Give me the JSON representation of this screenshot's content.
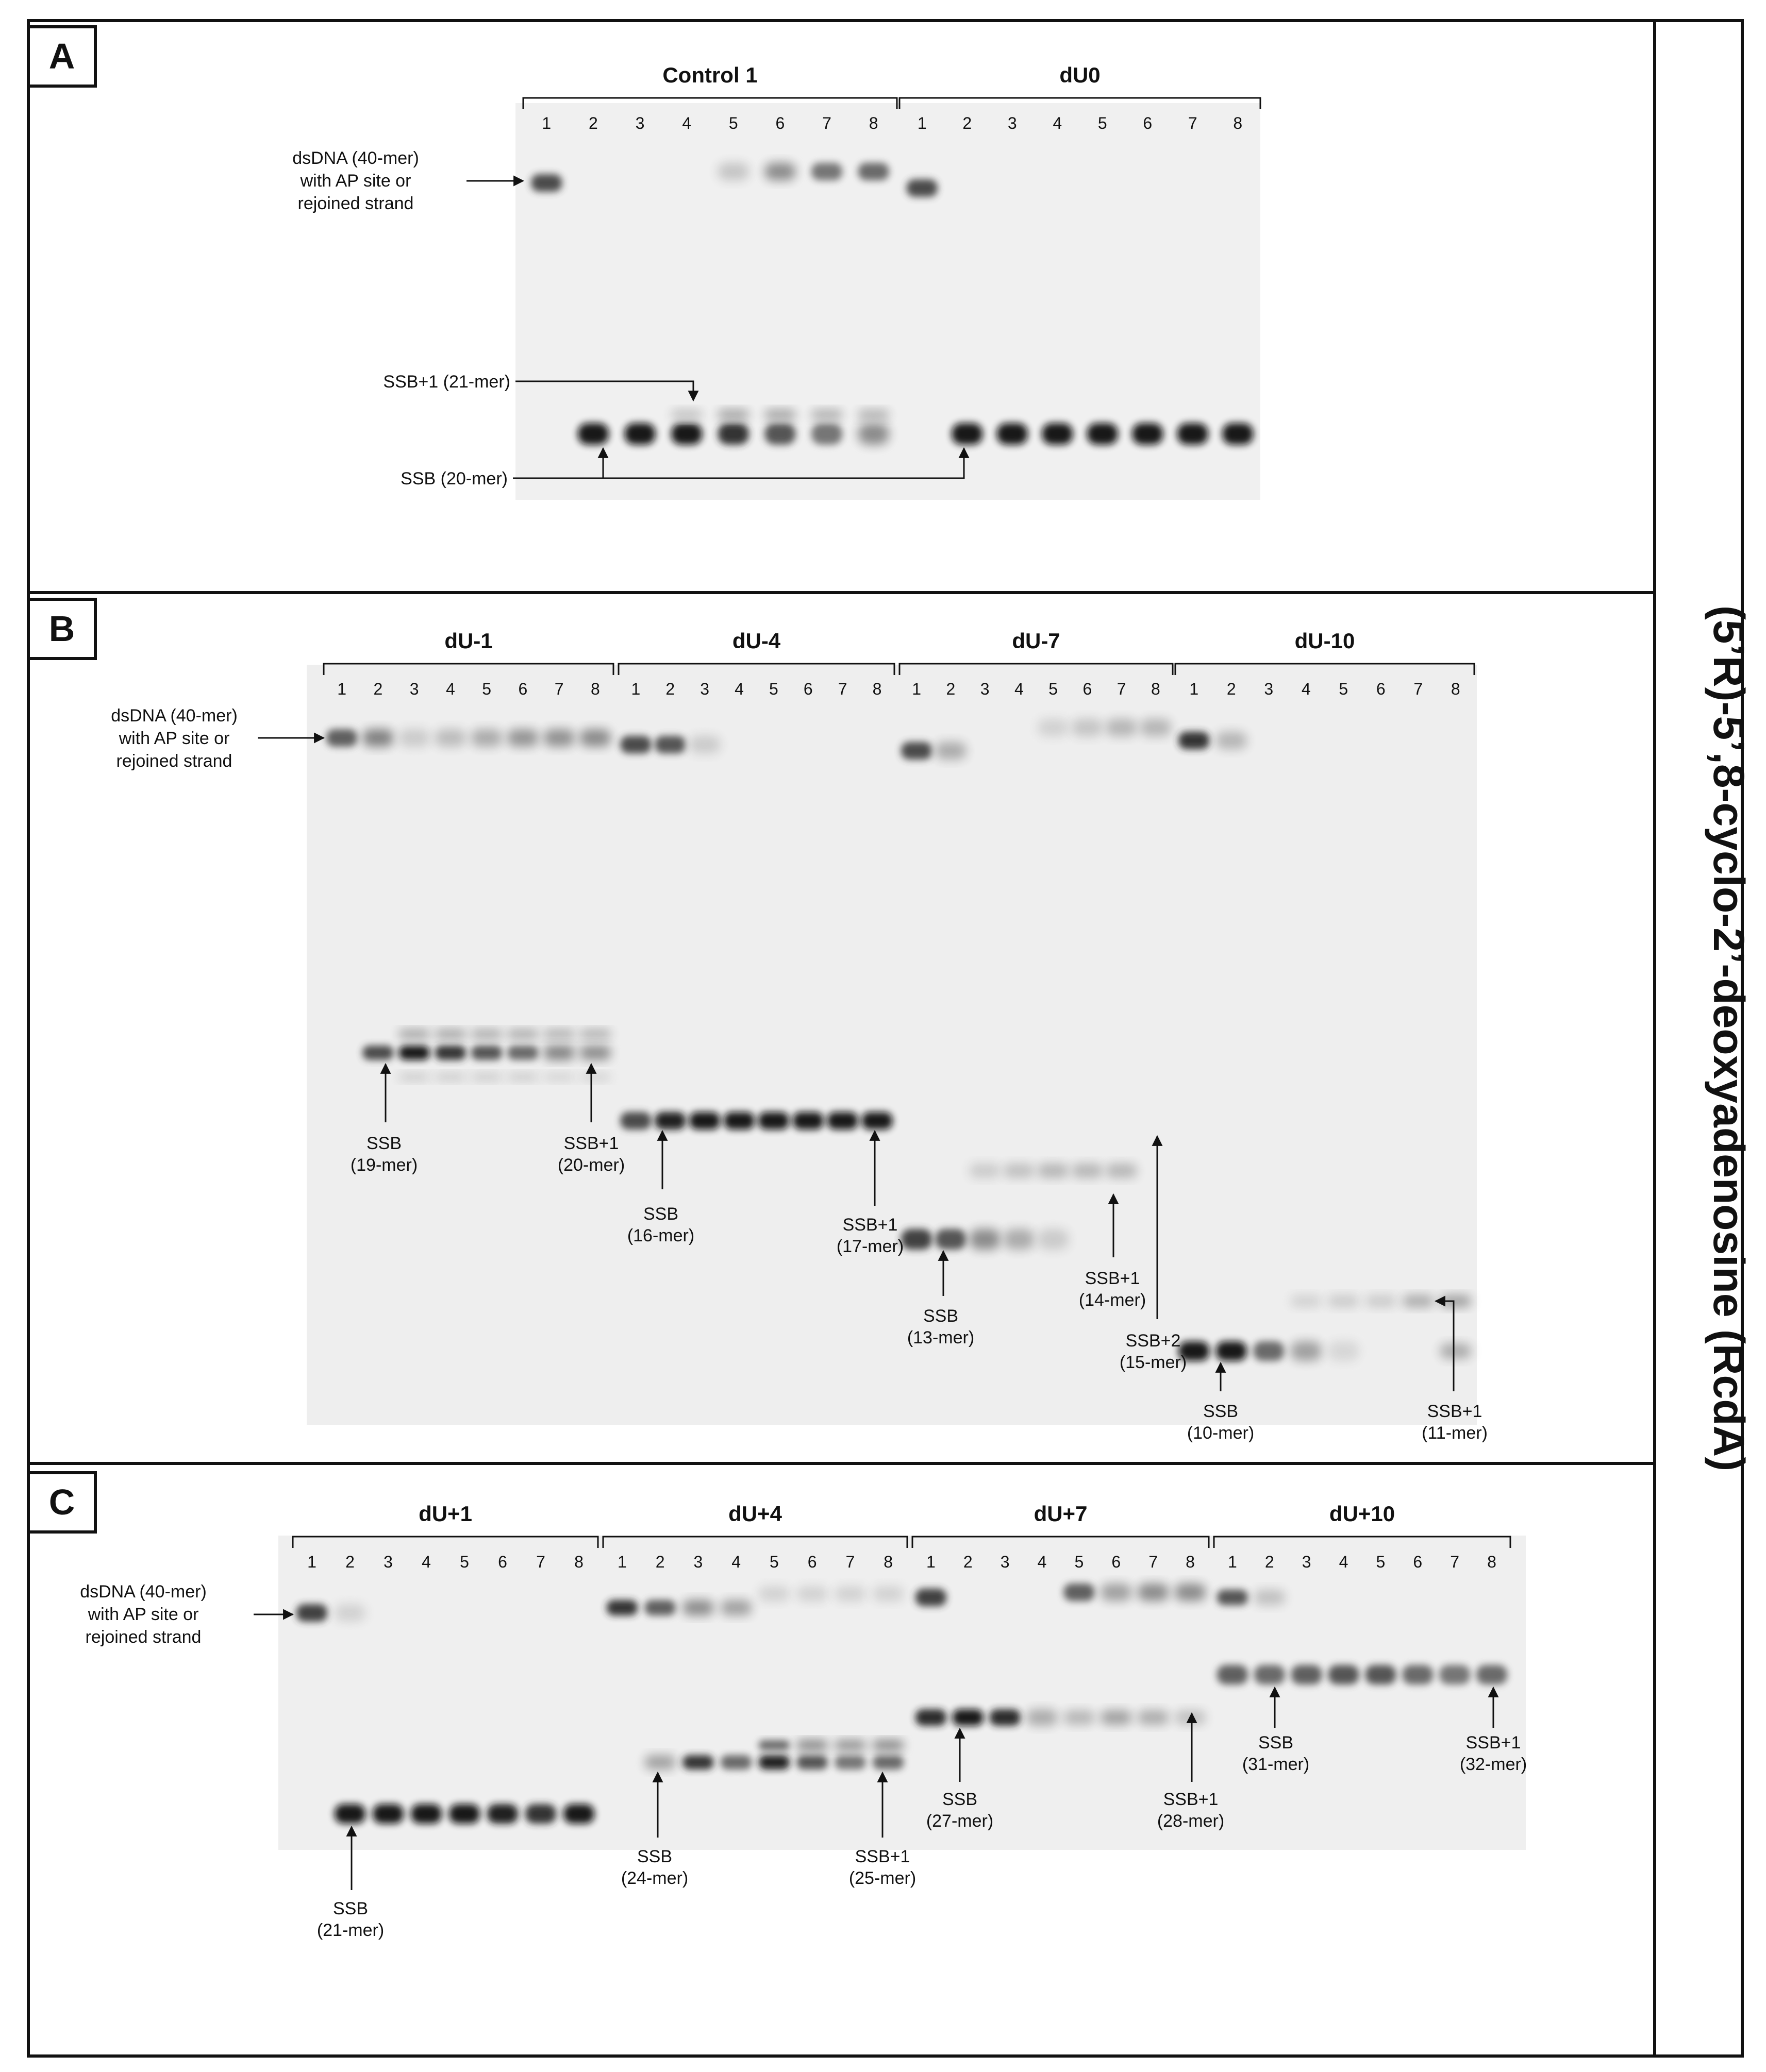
{
  "side_title": "(5’R)-5’,8-cyclo-2’-deoxyadenosine (RcdA)",
  "lane_numbers": [
    "1",
    "2",
    "3",
    "4",
    "5",
    "6",
    "7",
    "8"
  ],
  "panels": [
    {
      "letter": "A",
      "dsdna_label": [
        "dsDNA (40-mer)",
        "with AP site or",
        "rejoined strand"
      ],
      "groups": [
        "Control 1",
        "dU0"
      ],
      "annotations": [
        {
          "lines": [
            "SSB+1 (21-mer)"
          ]
        },
        {
          "lines": [
            "SSB (20-mer)"
          ]
        }
      ]
    },
    {
      "letter": "B",
      "dsdna_label": [
        "dsDNA (40-mer)",
        "with AP site or",
        "rejoined strand"
      ],
      "groups": [
        "dU-1",
        "dU-4",
        "dU-7",
        "dU-10"
      ],
      "annotations": [
        {
          "lines": [
            "SSB",
            "(19-mer)"
          ]
        },
        {
          "lines": [
            "SSB+1",
            "(20-mer)"
          ]
        },
        {
          "lines": [
            "SSB",
            "(16-mer)"
          ]
        },
        {
          "lines": [
            "SSB+1",
            "(17-mer)"
          ]
        },
        {
          "lines": [
            "SSB",
            "(13-mer)"
          ]
        },
        {
          "lines": [
            "SSB+1",
            "(14-mer)"
          ]
        },
        {
          "lines": [
            "SSB+2",
            "(15-mer)"
          ]
        },
        {
          "lines": [
            "SSB",
            "(10-mer)"
          ]
        },
        {
          "lines": [
            "SSB+1",
            "(11-mer)"
          ]
        }
      ]
    },
    {
      "letter": "C",
      "dsdna_label": [
        "dsDNA (40-mer)",
        "with AP site or",
        "rejoined strand"
      ],
      "groups": [
        "dU+1",
        "dU+4",
        "dU+7",
        "dU+10"
      ],
      "annotations": [
        {
          "lines": [
            "SSB",
            "(21-mer)"
          ]
        },
        {
          "lines": [
            "SSB",
            "(24-mer)"
          ]
        },
        {
          "lines": [
            "SSB+1",
            "(25-mer)"
          ]
        },
        {
          "lines": [
            "SSB",
            "(27-mer)"
          ]
        },
        {
          "lines": [
            "SSB+1",
            "(28-mer)"
          ]
        },
        {
          "lines": [
            "SSB",
            "(31-mer)"
          ]
        },
        {
          "lines": [
            "SSB+1",
            "(32-mer)"
          ]
        }
      ]
    }
  ]
}
